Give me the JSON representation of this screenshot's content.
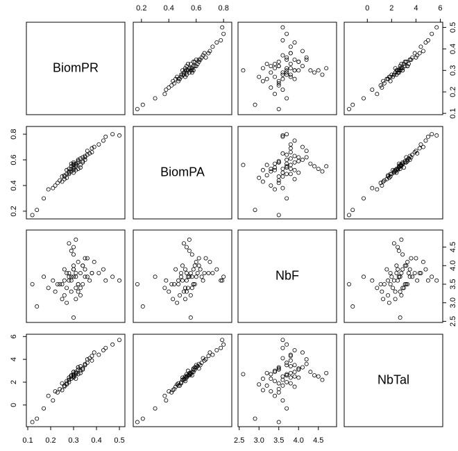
{
  "chart_data": {
    "type": "scatter_matrix",
    "point_color": "#000000",
    "variables": [
      {
        "name": "BiomPR",
        "lim": [
          0.094,
          0.524
        ],
        "ticks": [
          0.1,
          0.2,
          0.3,
          0.4,
          0.5
        ],
        "values": [
          0.3,
          0.25,
          0.35,
          0.28,
          0.32,
          0.22,
          0.38,
          0.31,
          0.27,
          0.34,
          0.29,
          0.33,
          0.26,
          0.36,
          0.3,
          0.24,
          0.41,
          0.31,
          0.28,
          0.35,
          0.19,
          0.44,
          0.3,
          0.27,
          0.33,
          0.29,
          0.37,
          0.23,
          0.32,
          0.3,
          0.14,
          0.47,
          0.28,
          0.34,
          0.31,
          0.26,
          0.39,
          0.29,
          0.33,
          0.3,
          0.21,
          0.36,
          0.32,
          0.28,
          0.25,
          0.35,
          0.31,
          0.12,
          0.5,
          0.29,
          0.34,
          0.27,
          0.3,
          0.43,
          0.17,
          0.32,
          0.3,
          0.26,
          0.38,
          0.31
        ]
      },
      {
        "name": "BiomPA",
        "lim": [
          0.14,
          0.86
        ],
        "ticks": [
          0.2,
          0.4,
          0.6,
          0.8
        ],
        "values": [
          0.54,
          0.47,
          0.63,
          0.5,
          0.6,
          0.4,
          0.66,
          0.55,
          0.52,
          0.59,
          0.53,
          0.56,
          0.45,
          0.64,
          0.57,
          0.44,
          0.72,
          0.52,
          0.49,
          0.62,
          0.37,
          0.78,
          0.58,
          0.46,
          0.61,
          0.55,
          0.65,
          0.42,
          0.53,
          0.5,
          0.21,
          0.8,
          0.51,
          0.58,
          0.56,
          0.48,
          0.7,
          0.57,
          0.54,
          0.52,
          0.38,
          0.67,
          0.59,
          0.53,
          0.43,
          0.6,
          0.55,
          0.17,
          0.79,
          0.51,
          0.62,
          0.49,
          0.56,
          0.75,
          0.3,
          0.58,
          0.53,
          0.47,
          0.69,
          0.57
        ]
      },
      {
        "name": "NbF",
        "lim": [
          2.47,
          4.96
        ],
        "ticks": [
          2.5,
          {
            "value": 3,
            "label": "3.0"
          },
          3.5,
          {
            "value": 4,
            "label": "4.0"
          },
          4.5
        ],
        "values": [
          3.7,
          3.5,
          3.9,
          3.6,
          4.1,
          3.3,
          3.8,
          3.7,
          3.4,
          4.0,
          3.6,
          3.2,
          3.9,
          3.7,
          4.3,
          3.5,
          3.8,
          3.1,
          3.7,
          4.2,
          3.4,
          3.6,
          3.9,
          3.0,
          3.8,
          4.4,
          3.6,
          3.5,
          3.3,
          4.0,
          2.9,
          3.7,
          4.6,
          3.5,
          3.8,
          3.2,
          4.1,
          3.7,
          3.4,
          3.9,
          3.6,
          4.2,
          3.5,
          3.8,
          3.1,
          3.7,
          4.7,
          3.5,
          3.6,
          3.3,
          4.0,
          3.8,
          2.6,
          3.9,
          3.7,
          3.5,
          4.5,
          3.6,
          3.8,
          3.4
        ]
      },
      {
        "name": "NbTal",
        "lim": [
          -1.9,
          6.2
        ],
        "ticks": [
          0,
          2,
          4,
          6
        ],
        "values": [
          2.6,
          1.9,
          3.5,
          2.2,
          3.3,
          1.2,
          3.9,
          2.7,
          2.1,
          3.1,
          2.5,
          2.8,
          1.6,
          3.7,
          2.9,
          1.4,
          4.4,
          2.3,
          2.0,
          3.6,
          0.8,
          5.0,
          2.9,
          1.8,
          3.4,
          2.6,
          4.1,
          1.1,
          2.7,
          2.4,
          -1.2,
          5.3,
          2.2,
          3.2,
          2.8,
          1.7,
          4.6,
          2.6,
          3.0,
          2.5,
          0.4,
          4.0,
          3.3,
          2.4,
          1.3,
          3.5,
          2.8,
          -1.5,
          5.7,
          2.3,
          3.2,
          1.9,
          2.7,
          4.8,
          -0.3,
          3.1,
          2.5,
          1.7,
          4.3,
          2.9
        ]
      }
    ]
  }
}
